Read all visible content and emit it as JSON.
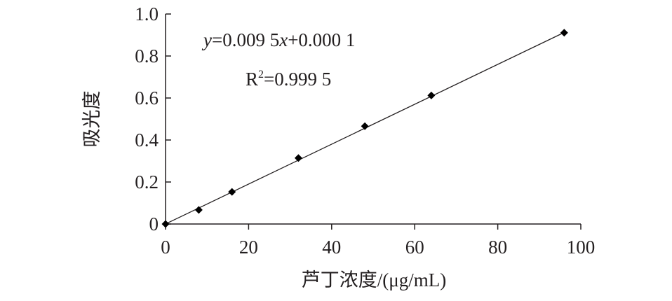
{
  "chart_data": {
    "type": "scatter",
    "title": "",
    "xlabel": "芦丁浓度/(μg/mL)",
    "ylabel": "吸光度",
    "xlim": [
      0,
      100
    ],
    "ylim": [
      0,
      1.0
    ],
    "x_ticks": [
      0,
      20,
      40,
      60,
      80,
      100
    ],
    "x_tick_labels": [
      "0",
      "20",
      "40",
      "60",
      "80",
      "100"
    ],
    "y_ticks": [
      0,
      0.2,
      0.4,
      0.6,
      0.8,
      1.0
    ],
    "y_tick_labels": [
      "0",
      "0.2",
      "0.4",
      "0.6",
      "0.8",
      "1.0"
    ],
    "grid": false,
    "series": [
      {
        "marker": "diamond",
        "color": "#000000",
        "points": [
          {
            "x": 0,
            "y": 0.0
          },
          {
            "x": 8,
            "y": 0.067
          },
          {
            "x": 16,
            "y": 0.153
          },
          {
            "x": 32,
            "y": 0.314
          },
          {
            "x": 48,
            "y": 0.466
          },
          {
            "x": 64,
            "y": 0.612
          },
          {
            "x": 96,
            "y": 0.911
          }
        ]
      }
    ],
    "trendline": {
      "slope": 0.0095,
      "intercept": 0.0001,
      "x_range": [
        0,
        96
      ]
    },
    "annotations": {
      "equation": {
        "y_var": "y",
        "eq_part1": "=0.009 5",
        "x_var": "x",
        "eq_part2": "+0.000 1"
      },
      "r_squared": {
        "base": "R",
        "sup": "2",
        "value": "=0.999 5"
      }
    }
  }
}
